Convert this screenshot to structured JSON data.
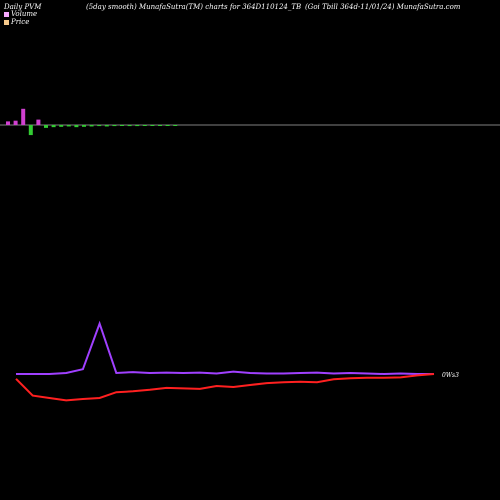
{
  "header": {
    "left": "Daily PVM",
    "center": "(5day smooth) MunafaSutra(TM) charts for 364D110124_TB",
    "right": "(Goi  Tbill 364d-11/01/24) MunafaSutra.com"
  },
  "legend": [
    {
      "label": "Volume",
      "color": "#f7a8ff"
    },
    {
      "label": "Price",
      "color": "#f7c98b"
    }
  ],
  "colors": {
    "background": "#000000",
    "up_bar": "#d040d0",
    "down_bar": "#33cc33",
    "baseline": "#aaaaaa",
    "price_line": "#ff2020",
    "volume_line": "#a040ff"
  },
  "chart_data": {
    "type": "line",
    "volume_bars": [
      1.0,
      1.2,
      4.5,
      2.8,
      1.5,
      0.8,
      0.6,
      0.5,
      0.4,
      0.6,
      0.5,
      0.4,
      0.3,
      0.4,
      0.3,
      0.2,
      0.3,
      0.3,
      0.2,
      0.2,
      0.1,
      0.2,
      0.2
    ],
    "volume_bar_dir": [
      "up",
      "up",
      "up",
      "down",
      "up",
      "down",
      "down",
      "down",
      "down",
      "down",
      "down",
      "down",
      "down",
      "down",
      "down",
      "down",
      "down",
      "down",
      "down",
      "down",
      "down",
      "down",
      "down"
    ],
    "series": [
      {
        "values": [
          0.0,
          0.0,
          0.0,
          0.2,
          1.0,
          10.5,
          0.2,
          0.4,
          0.2,
          0.3,
          0.2,
          0.3,
          0.1,
          0.5,
          0.2,
          0.1,
          0.1,
          0.2,
          0.3,
          0.1,
          0.2,
          0.1,
          0.0,
          0.1,
          0.0,
          0.0
        ]
      },
      {
        "values": [
          -1.0,
          -4.5,
          -5.0,
          -5.5,
          -5.2,
          -5.0,
          -3.8,
          -3.6,
          -3.3,
          -2.9,
          -3.0,
          -3.1,
          -2.5,
          -2.7,
          -2.3,
          -1.9,
          -1.7,
          -1.6,
          -1.7,
          -1.1,
          -0.9,
          -0.8,
          -0.8,
          -0.7,
          -0.3,
          0.0
        ]
      }
    ],
    "end_label": "0Ws3"
  }
}
